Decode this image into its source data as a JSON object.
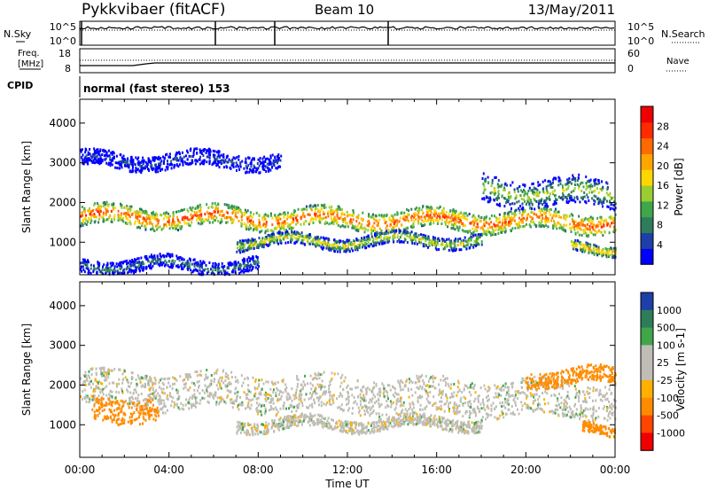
{
  "header": {
    "station": "Pykkvibaer (fitACF)",
    "beam": "Beam 10",
    "date": "13/May/2011"
  },
  "strip_panels": {
    "noise": {
      "left_label": "N.Sky",
      "right_label": "N.Search",
      "left_ticks": [
        "10^5",
        "10^0"
      ],
      "right_ticks": [
        "10^5",
        "10^0"
      ]
    },
    "freq": {
      "left_label_1": "Freq.",
      "left_label_2": "[MHz]",
      "right_label": "Nave",
      "left_ticks": [
        "18",
        "8"
      ],
      "right_ticks": [
        "60",
        "0"
      ]
    },
    "cpid": {
      "label": "CPID",
      "text": "normal (fast stereo) 153"
    }
  },
  "colors": {
    "power_scale": [
      "#0000ff",
      "#1d3fa8",
      "#2e7d5a",
      "#3fa64a",
      "#9acd32",
      "#ffd700",
      "#ffa500",
      "#ff6a00",
      "#ff2a00",
      "#ee0000"
    ],
    "velocity_scale": [
      "#ee0000",
      "#ff4500",
      "#ff8c00",
      "#ffb000",
      "#bfbdb5",
      "#bfbdb5",
      "#3fa64a",
      "#2e7d5a",
      "#1d3fa8"
    ]
  },
  "chart_data": [
    {
      "type": "heatmap",
      "name": "power",
      "ylabel": "Slant Range [km]",
      "ylim": [
        180,
        4600
      ],
      "y_ticks": [
        "1000",
        "2000",
        "3000",
        "4000"
      ],
      "colorbar_label": "Power [dB]",
      "colorbar_ticks": [
        "4",
        "8",
        "12",
        "16",
        "20",
        "24",
        "28"
      ],
      "colorbar_range": [
        0,
        32
      ],
      "scatter_bands": [
        {
          "t_start": 0,
          "t_end": 24,
          "center_start": 1650,
          "center_end": 1500,
          "width_km": 500,
          "value": 26
        },
        {
          "t_start": 0,
          "t_end": 9,
          "center_start": 3050,
          "center_end": 3050,
          "width_km": 400,
          "value": 6
        },
        {
          "t_start": 7,
          "t_end": 18,
          "center_start": 1000,
          "center_end": 1050,
          "width_km": 300,
          "value": 18
        },
        {
          "t_start": 0,
          "t_end": 8,
          "center_start": 420,
          "center_end": 420,
          "width_km": 350,
          "value": 10
        },
        {
          "t_start": 18,
          "t_end": 24,
          "center_start": 2300,
          "center_end": 2200,
          "width_km": 700,
          "value": 16
        },
        {
          "t_start": 22,
          "t_end": 24,
          "center_start": 850,
          "center_end": 850,
          "width_km": 250,
          "value": 22
        }
      ]
    },
    {
      "type": "heatmap",
      "name": "velocity",
      "ylabel": "Slant Range [km]",
      "xlabel": "Time UT",
      "ylim": [
        180,
        4600
      ],
      "y_ticks": [
        "1000",
        "2000",
        "3000",
        "4000"
      ],
      "x_ticks": [
        "00:00",
        "04:00",
        "08:00",
        "12:00",
        "16:00",
        "20:00",
        "00:00"
      ],
      "xlim_hours": [
        0,
        24
      ],
      "colorbar_label": "Velocity [m s-1]",
      "colorbar_ticks": [
        "1000",
        "500",
        "100",
        "25",
        "-25",
        "-100",
        "-500",
        "-1000"
      ],
      "scatter_bands": [
        {
          "t_start": 0,
          "t_end": 24,
          "center_start": 1900,
          "center_end": 1600,
          "width_km": 900,
          "value": 0
        },
        {
          "t_start": 7,
          "t_end": 18,
          "center_start": 1000,
          "center_end": 1050,
          "width_km": 300,
          "value": 0
        },
        {
          "t_start": 0.5,
          "t_end": 3.5,
          "center_start": 1400,
          "center_end": 1400,
          "width_km": 600,
          "value": -300
        },
        {
          "t_start": 20,
          "t_end": 24,
          "center_start": 2200,
          "center_end": 2200,
          "width_km": 400,
          "value": -150
        },
        {
          "t_start": 22.5,
          "t_end": 24,
          "center_start": 850,
          "center_end": 850,
          "width_km": 250,
          "value": -200
        }
      ]
    }
  ]
}
